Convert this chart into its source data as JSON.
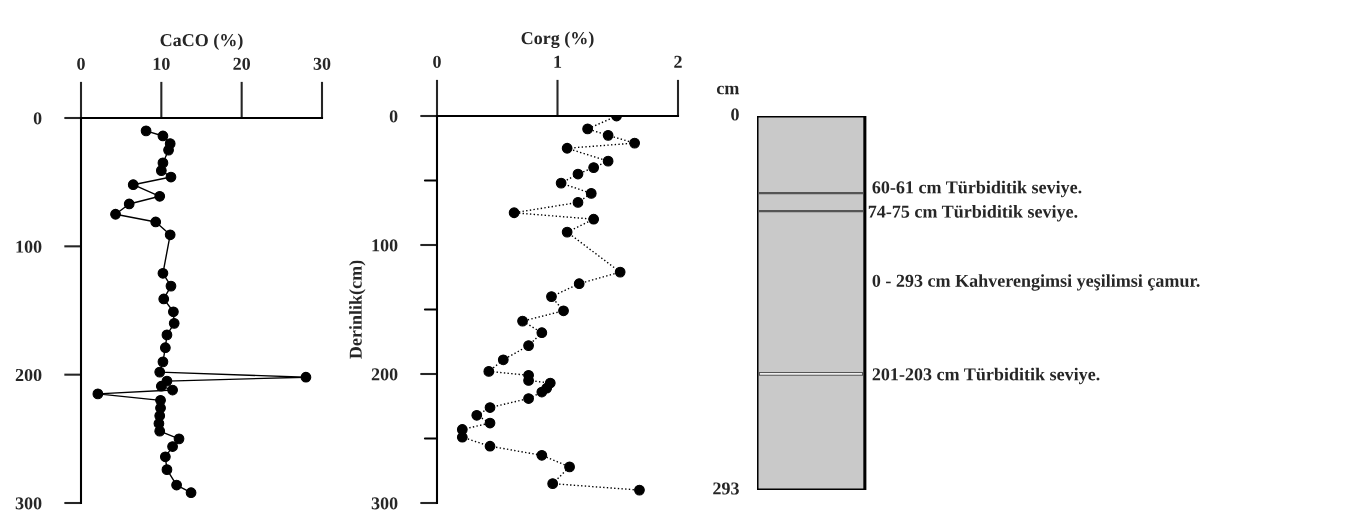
{
  "chart_data": [
    {
      "type": "line",
      "xlabel": "CaCO (%)",
      "xlim": [
        0,
        30
      ],
      "xticks": [
        0,
        10,
        20,
        30
      ],
      "ylim": [
        300,
        0
      ],
      "yticks": [
        0,
        100,
        200,
        300
      ],
      "marker": "circle",
      "line_style": "solid",
      "series": [
        {
          "color": "#000000",
          "x": [
            8.1,
            10.2,
            11.1,
            10.9,
            10.2,
            10.0,
            11.2,
            6.5,
            9.8,
            6.0,
            4.3,
            9.3,
            11.1,
            10.2,
            11.2,
            10.3,
            11.5,
            11.6,
            10.7,
            10.5,
            10.2,
            9.8,
            28.0,
            10.7,
            10.0,
            11.4,
            2.1,
            9.9,
            9.9,
            9.8,
            9.7,
            9.8,
            12.2,
            11.4,
            10.5,
            10.7,
            11.9,
            13.7
          ],
          "values": [
            10,
            14,
            20,
            25,
            35,
            41,
            46,
            52,
            61,
            67,
            75,
            81,
            91,
            121,
            131,
            141,
            151,
            160,
            169,
            179,
            190,
            198,
            202,
            205,
            209,
            212,
            215,
            220,
            226,
            232,
            238,
            244,
            250,
            256,
            264,
            274,
            286,
            292
          ]
        }
      ]
    },
    {
      "type": "line",
      "xlabel": "Corg (%)",
      "ylabel": "Derinlik(cm)",
      "xlim": [
        0,
        2
      ],
      "xticks": [
        0,
        1,
        2
      ],
      "ylim": [
        300,
        0
      ],
      "yticks": [
        0,
        {
          "value": 50,
          "label": null
        },
        100,
        {
          "value": 150,
          "label": null
        },
        200,
        {
          "value": 250,
          "label": null
        },
        300
      ],
      "marker": "circle",
      "line_style": "dotted",
      "series": [
        {
          "color": "#000000",
          "x": [
            1.49,
            1.25,
            1.42,
            1.64,
            1.08,
            1.42,
            1.3,
            1.17,
            1.03,
            1.28,
            1.17,
            0.64,
            1.3,
            1.08,
            1.52,
            1.18,
            0.95,
            1.05,
            0.71,
            0.87,
            0.76,
            0.55,
            0.43,
            0.76,
            0.76,
            0.94,
            0.91,
            0.87,
            0.76,
            0.44,
            0.33,
            0.44,
            0.21,
            0.21,
            0.44,
            0.87,
            1.1,
            0.96,
            1.68
          ],
          "values": [
            0,
            10,
            15,
            21,
            25,
            35,
            40,
            45,
            52,
            60,
            67,
            75,
            80,
            90,
            121,
            130,
            140,
            151,
            159,
            168,
            178,
            189,
            198,
            201,
            205,
            207,
            211,
            214,
            219,
            226,
            232,
            238,
            243,
            249,
            256,
            263,
            272,
            285,
            290
          ]
        }
      ]
    },
    {
      "type": "other",
      "annotations": [
        "cm",
        "0",
        "293",
        "60-61 cm Türbiditik seviye.",
        "74-75 cm Türbiditik seviye.",
        "0 - 293 cm Kahverengimsi yeşilimsi çamur.",
        "201-203 cm Türbiditik seviye."
      ]
    }
  ]
}
